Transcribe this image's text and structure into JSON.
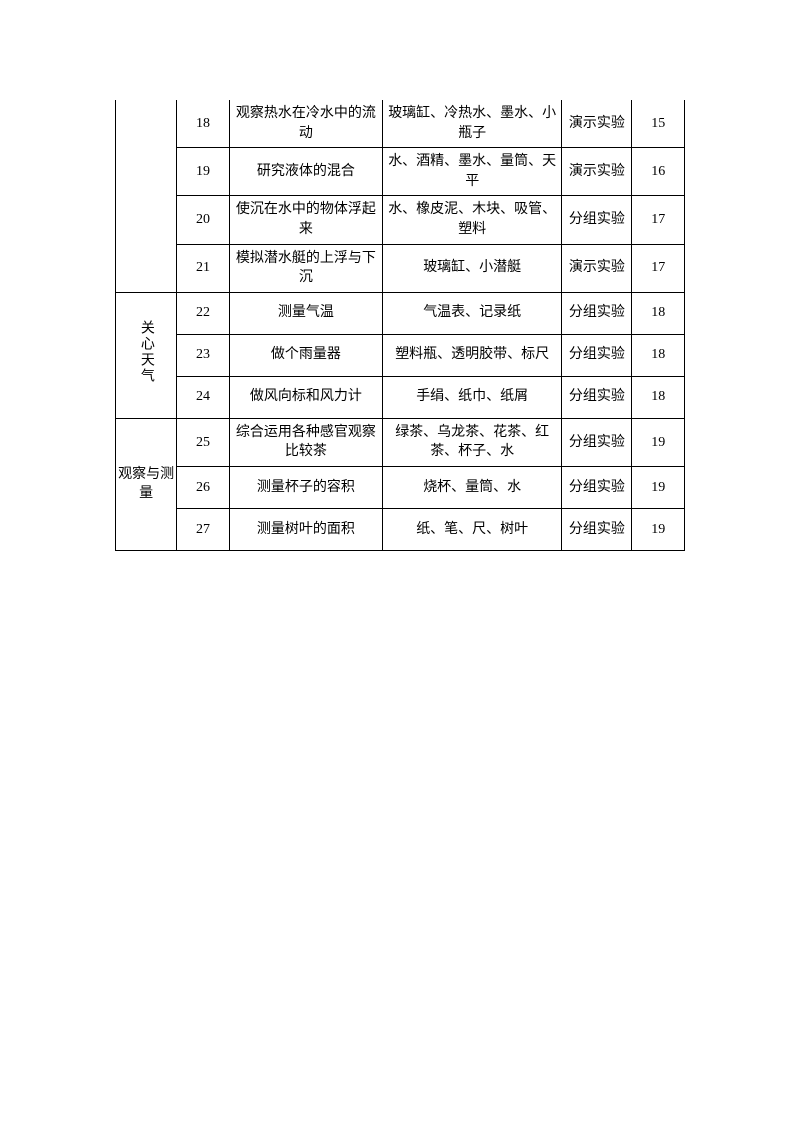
{
  "sections": [
    {
      "category": "",
      "vertical": false,
      "rows": [
        {
          "num": "18",
          "name": "观察热水在冷水中的流动",
          "materials": "玻璃缸、冷热水、墨水、小瓶子",
          "type": "演示实验",
          "week": "15"
        },
        {
          "num": "19",
          "name": "研究液体的混合",
          "materials": "水、酒精、墨水、量筒、天平",
          "type": "演示实验",
          "week": "16"
        },
        {
          "num": "20",
          "name": "使沉在水中的物体浮起来",
          "materials": "水、橡皮泥、木块、吸管、塑料",
          "type": "分组实验",
          "week": "17"
        },
        {
          "num": "21",
          "name": "模拟潜水艇的上浮与下沉",
          "materials": "玻璃缸、小潜艇",
          "type": "演示实验",
          "week": "17"
        }
      ]
    },
    {
      "category": "关心天气",
      "vertical": true,
      "rows": [
        {
          "num": "22",
          "name": "测量气温",
          "materials": "气温表、记录纸",
          "type": "分组实验",
          "week": "18"
        },
        {
          "num": "23",
          "name": "做个雨量器",
          "materials": "塑料瓶、透明胶带、标尺",
          "type": "分组实验",
          "week": "18"
        },
        {
          "num": "24",
          "name": "做风向标和风力计",
          "materials": "手绢、纸巾、纸屑",
          "type": "分组实验",
          "week": "18"
        }
      ]
    },
    {
      "category": "观察与测量",
      "vertical": false,
      "rows": [
        {
          "num": "25",
          "name": "综合运用各种感官观察比较茶",
          "materials": "绿茶、乌龙茶、花茶、红茶、杯子、水",
          "type": "分组实验",
          "week": "19"
        },
        {
          "num": "26",
          "name": "测量杯子的容积",
          "materials": "烧杯、量筒、水",
          "type": "分组实验",
          "week": "19"
        },
        {
          "num": "27",
          "name": "测量树叶的面积",
          "materials": "纸、笔、尺、树叶",
          "type": "分组实验",
          "week": "19"
        }
      ]
    }
  ]
}
